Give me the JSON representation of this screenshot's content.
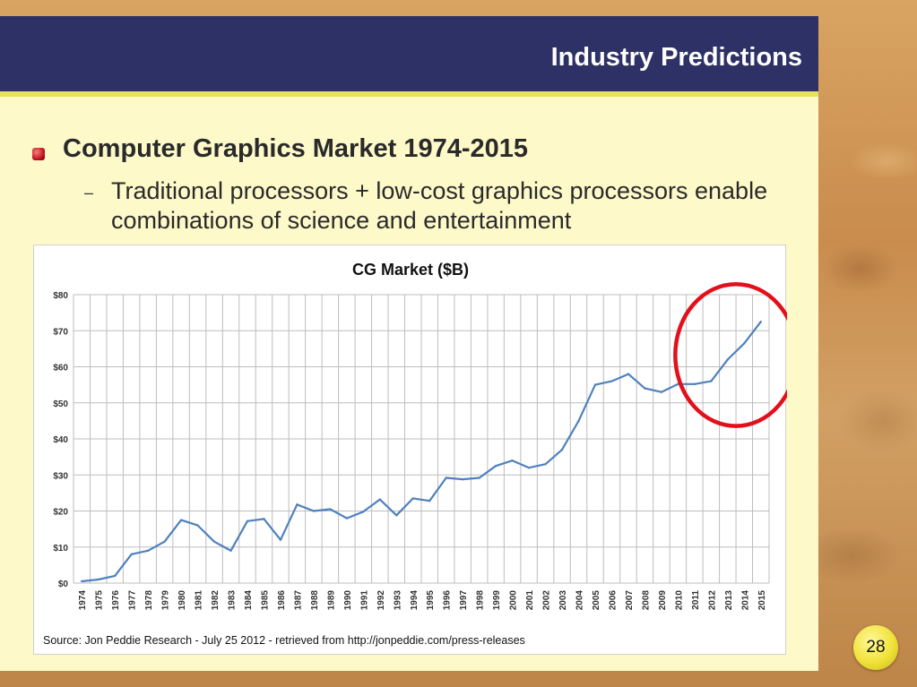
{
  "slide": {
    "title": "Industry Predictions",
    "heading": "Computer Graphics Market 1974-2015",
    "dash": "–",
    "subtext": "Traditional processors + low-cost graphics processors enable combinations of science and entertainment",
    "source": "Source: Jon Peddie Research - July 25 2012 - retrieved from http://jonpeddie.com/press-releases",
    "page_number": "28"
  },
  "colors": {
    "line": "#4f81bd",
    "circle": "#e3101b",
    "title_bar": "#2e3165",
    "panel": "#fdf9c9",
    "accent_stripe": "#e7e163"
  },
  "chart_data": {
    "type": "line",
    "title": "CG Market ($B)",
    "xlabel": "",
    "ylabel": "",
    "ylim": [
      0,
      80
    ],
    "grid": true,
    "yticks": [
      "$0",
      "$10",
      "$20",
      "$30",
      "$40",
      "$50",
      "$60",
      "$70",
      "$80"
    ],
    "categories": [
      "1974",
      "1975",
      "1976",
      "1977",
      "1978",
      "1979",
      "1980",
      "1981",
      "1982",
      "1983",
      "1984",
      "1985",
      "1986",
      "1987",
      "1988",
      "1989",
      "1990",
      "1991",
      "1992",
      "1993",
      "1994",
      "1995",
      "1996",
      "1997",
      "1998",
      "1999",
      "2000",
      "2001",
      "2002",
      "2003",
      "2004",
      "2005",
      "2006",
      "2007",
      "2008",
      "2009",
      "2010",
      "2011",
      "2012",
      "2013",
      "2014",
      "2015"
    ],
    "series": [
      {
        "values": [
          0.5,
          1,
          2,
          8,
          9,
          11.5,
          17.5,
          16,
          11.5,
          9,
          17.2,
          17.8,
          12,
          21.8,
          20,
          20.5,
          18,
          19.8,
          23.2,
          18.8,
          23.5,
          22.8,
          29.2,
          28.8,
          29.2,
          32.5,
          34,
          32,
          33,
          37,
          45,
          55,
          56,
          58,
          54,
          53,
          55.2,
          55.2,
          56,
          62,
          66.5,
          72.5
        ]
      }
    ],
    "annotations": [
      {
        "type": "ellipse",
        "color": "circle",
        "around_categories": [
          "2012",
          "2015"
        ]
      }
    ]
  }
}
